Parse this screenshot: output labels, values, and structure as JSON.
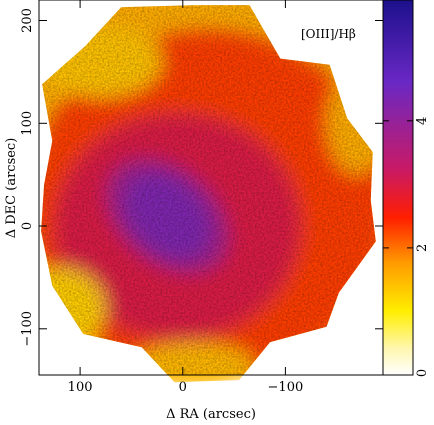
{
  "chart_data": {
    "type": "heatmap",
    "title": "",
    "map_label": "[OIII]/Hβ",
    "xlabel": "Δ RA (arcsec)",
    "ylabel": "Δ DEC (arcsec)",
    "xlim": [
      140,
      -195
    ],
    "ylim": [
      -145,
      220
    ],
    "x_ticks": [
      100,
      0,
      -100
    ],
    "x_tick_labels": [
      "100",
      "0",
      "−100"
    ],
    "y_ticks": [
      -100,
      0,
      100,
      200
    ],
    "y_tick_labels": [
      "−100",
      "0",
      "100",
      "200"
    ],
    "colorbar": {
      "range": [
        0,
        5.9
      ],
      "ticks": [
        0,
        2,
        4
      ],
      "tick_labels": [
        "0",
        "2",
        "4"
      ],
      "colors": [
        "#ffffff",
        "#fff7b0",
        "#ffee00",
        "#ff9a00",
        "#ff1e00",
        "#c81a66",
        "#6a28c4",
        "#1c108c"
      ],
      "color_positions": [
        0,
        0.07,
        0.17,
        0.3,
        0.42,
        0.55,
        0.78,
        1
      ]
    },
    "field_outline": [
      [
        -13,
        215
      ],
      [
        -65,
        215
      ],
      [
        -95,
        163
      ],
      [
        -143,
        157
      ],
      [
        -160,
        105
      ],
      [
        -185,
        72
      ],
      [
        -183,
        25
      ],
      [
        -188,
        -15
      ],
      [
        -152,
        -65
      ],
      [
        -140,
        -98
      ],
      [
        -85,
        -113
      ],
      [
        -55,
        -150
      ],
      [
        8,
        -152
      ],
      [
        40,
        -118
      ],
      [
        97,
        -105
      ],
      [
        127,
        -58
      ],
      [
        138,
        -5
      ],
      [
        135,
        40
      ],
      [
        127,
        83
      ],
      [
        137,
        138
      ],
      [
        95,
        175
      ],
      [
        60,
        213
      ]
    ],
    "regions": [
      {
        "description": "central ridge",
        "center": [
          15,
          10
        ],
        "semi_axes": [
          48,
          34
        ],
        "angle_deg": -45,
        "value": 4.3
      },
      {
        "description": "central ridge outer",
        "center": [
          15,
          10
        ],
        "semi_axes": [
          68,
          46
        ],
        "angle_deg": -40,
        "value": 3.8
      },
      {
        "description": "inner disc",
        "center": [
          5,
          0
        ],
        "semi_axes": [
          120,
          110
        ],
        "angle_deg": 0,
        "value": 3.0
      },
      {
        "description": "outer ring",
        "center": [
          -25,
          20
        ],
        "semi_axes": [
          175,
          170
        ],
        "angle_deg": 0,
        "value": 2.3
      },
      {
        "description": "north-east rim",
        "center": [
          80,
          160
        ],
        "semi_axes": [
          60,
          35
        ],
        "angle_deg": 0,
        "value": 1.4
      },
      {
        "description": "south-east rim",
        "center": [
          120,
          -80
        ],
        "semi_axes": [
          45,
          40
        ],
        "angle_deg": 0,
        "value": 1.3
      },
      {
        "description": "west rim",
        "center": [
          -170,
          100
        ],
        "semi_axes": [
          30,
          50
        ],
        "angle_deg": 0,
        "value": 1.6
      },
      {
        "description": "south rim",
        "center": [
          -10,
          -135
        ],
        "semi_axes": [
          60,
          22
        ],
        "angle_deg": 0,
        "value": 1.5
      }
    ]
  }
}
